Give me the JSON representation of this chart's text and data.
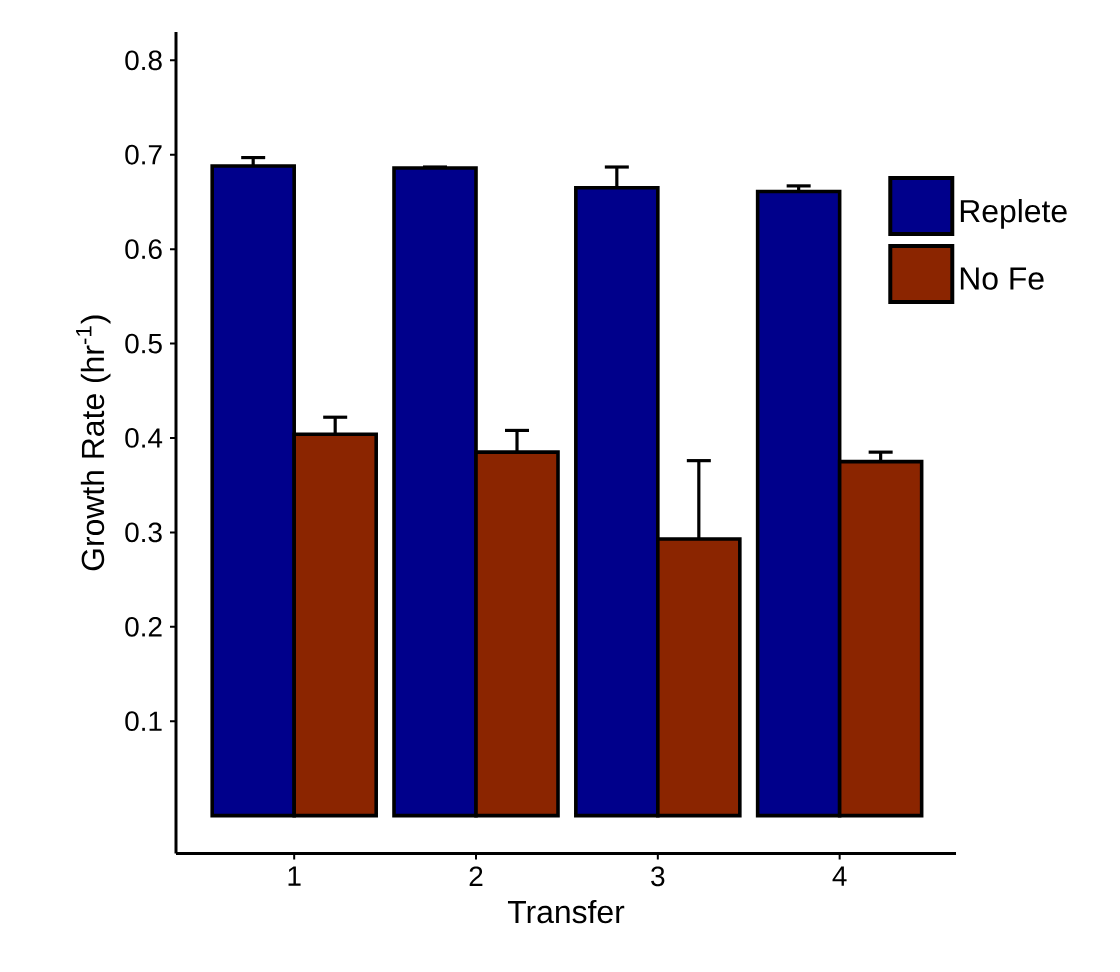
{
  "chart_data": {
    "type": "bar",
    "xlabel": "Transfer",
    "ylabel": "Growth Rate (hr$^{-1}$)",
    "categories": [
      "1",
      "2",
      "3",
      "4"
    ],
    "series": [
      {
        "name": "Replete",
        "color": "#00008b",
        "values": [
          0.688,
          0.686,
          0.665,
          0.661
        ],
        "errors": [
          0.009,
          0.001,
          0.022,
          0.006
        ]
      },
      {
        "name": "No Fe",
        "color": "#8b2500",
        "values": [
          0.404,
          0.385,
          0.293,
          0.375
        ],
        "errors": [
          0.018,
          0.023,
          0.083,
          0.01
        ]
      }
    ],
    "ylim": [
      -0.04,
      0.83
    ],
    "yticks": [
      0.1,
      0.2,
      0.3,
      0.4,
      0.5,
      0.6,
      0.7,
      0.8
    ],
    "grid": false,
    "legend": "right"
  }
}
